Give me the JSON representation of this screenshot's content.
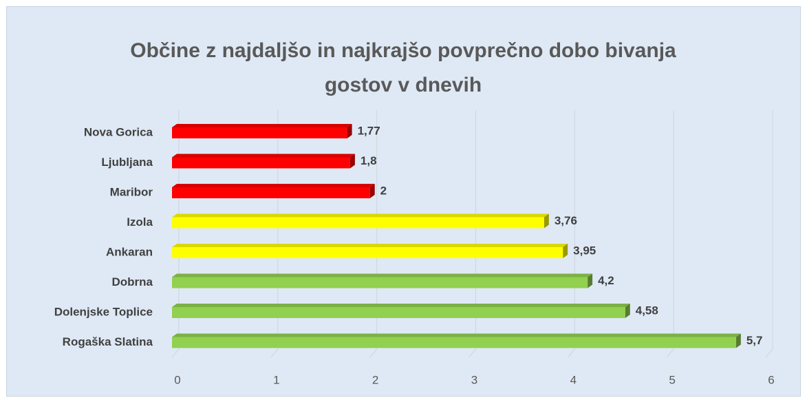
{
  "chart_data": {
    "type": "bar",
    "orientation": "horizontal",
    "title": "Občine z najdaljšo in najkrajšo povprečno dobo bivanja gostov v dnevih",
    "categories": [
      "Nova Gorica",
      "Ljubljana",
      "Maribor",
      "Izola",
      "Ankaran",
      "Dobrna",
      "Dolenjske Toplice",
      "Rogaška Slatina"
    ],
    "values": [
      1.77,
      1.8,
      2,
      3.76,
      3.95,
      4.2,
      4.58,
      5.7
    ],
    "value_labels": [
      "1,77",
      "1,8",
      "2",
      "3,76",
      "3,95",
      "4,2",
      "4,58",
      "5,7"
    ],
    "colors": [
      "#ff0000",
      "#ff0000",
      "#ff0000",
      "#ffff00",
      "#ffff00",
      "#92d050",
      "#92d050",
      "#92d050"
    ],
    "xlim": [
      0,
      6
    ],
    "xticks": [
      0,
      1,
      2,
      3,
      4,
      5,
      6
    ],
    "grid": true
  }
}
